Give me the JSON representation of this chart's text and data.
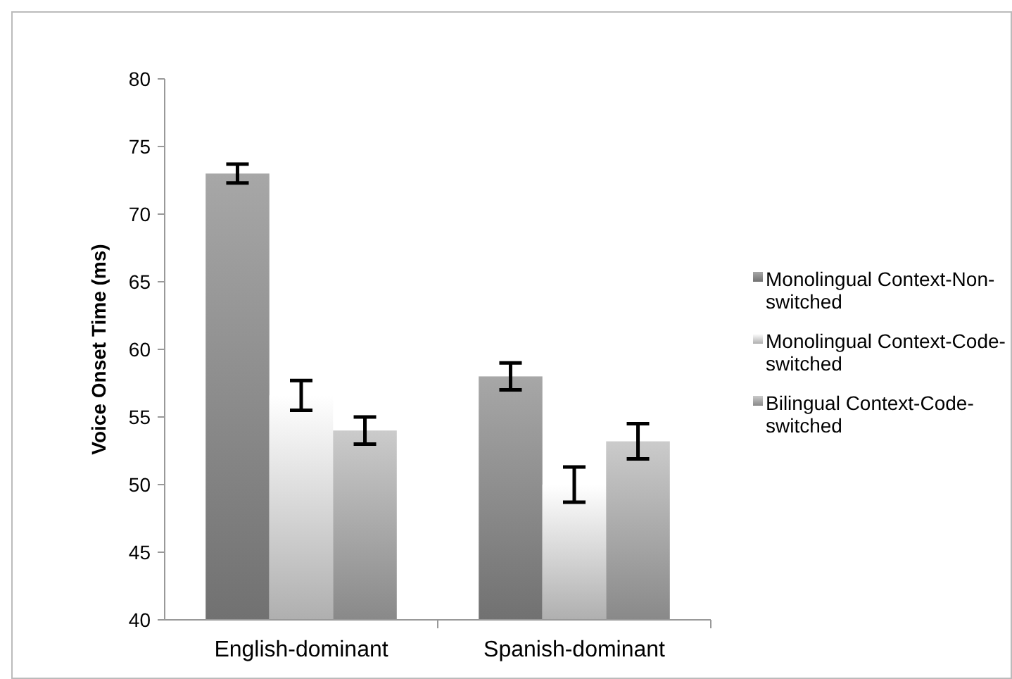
{
  "chart_data": {
    "type": "bar",
    "ylabel": "Voice Onset Time (ms)",
    "categories": [
      "English-dominant",
      "Spanish-dominant"
    ],
    "series": [
      {
        "name": "Monolingual Context-Non-switched",
        "color": "#8c8c8c",
        "values": [
          73,
          58
        ],
        "errors": [
          0.7,
          1.0
        ]
      },
      {
        "name": "Monolingual Context-Code-switched",
        "color": "#d9d9d9",
        "values": [
          56.6,
          50
        ],
        "errors": [
          1.1,
          1.3
        ]
      },
      {
        "name": "Bilingual Context-Code-switched",
        "color": "#aaaaaa",
        "values": [
          54,
          53.2
        ],
        "errors": [
          1.0,
          1.3
        ]
      }
    ],
    "ylim": [
      40,
      80
    ],
    "yticks": [
      40,
      45,
      50,
      55,
      60,
      65,
      70,
      75,
      80
    ],
    "grid": false,
    "legend": "right"
  }
}
